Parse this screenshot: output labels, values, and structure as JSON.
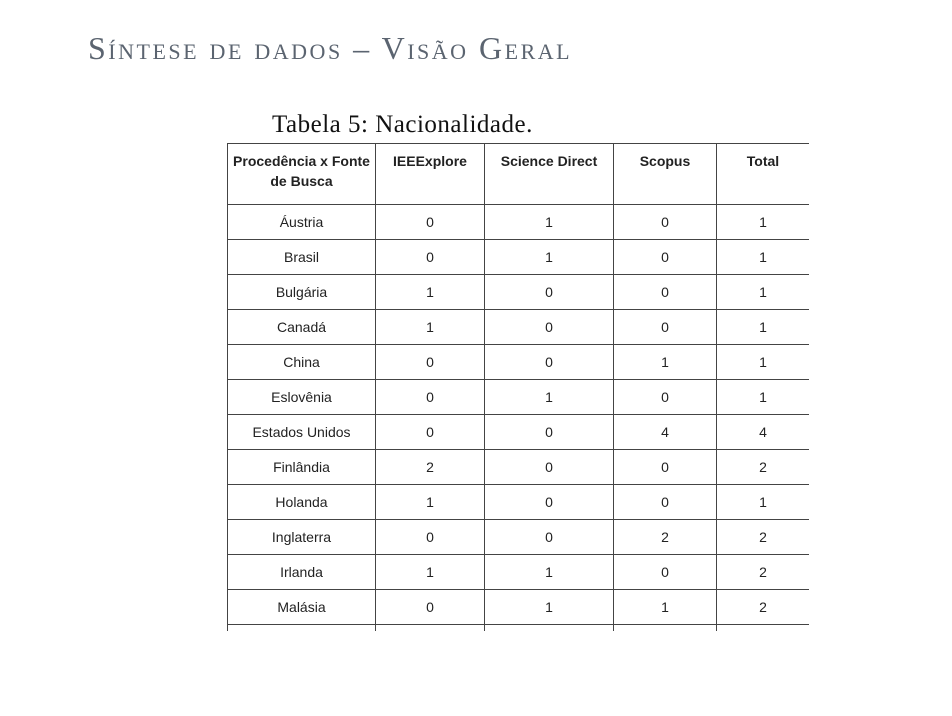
{
  "slide": {
    "title": "Síntese de dados – Visão Geral"
  },
  "table": {
    "caption": "Tabela 5: Nacionalidade.",
    "headers": {
      "origin": "Procedência x Fonte de Busca",
      "ieee": "IEEExplore",
      "science_direct": "Science Direct",
      "scopus": "Scopus",
      "total": "Total"
    },
    "rows": [
      {
        "country": "Áustria",
        "ieee": "0",
        "science_direct": "1",
        "scopus": "0",
        "total": "1"
      },
      {
        "country": "Brasil",
        "ieee": "0",
        "science_direct": "1",
        "scopus": "0",
        "total": "1"
      },
      {
        "country": "Bulgária",
        "ieee": "1",
        "science_direct": "0",
        "scopus": "0",
        "total": "1"
      },
      {
        "country": "Canadá",
        "ieee": "1",
        "science_direct": "0",
        "scopus": "0",
        "total": "1"
      },
      {
        "country": "China",
        "ieee": "0",
        "science_direct": "0",
        "scopus": "1",
        "total": "1"
      },
      {
        "country": "Eslovênia",
        "ieee": "0",
        "science_direct": "1",
        "scopus": "0",
        "total": "1"
      },
      {
        "country": "Estados Unidos",
        "ieee": "0",
        "science_direct": "0",
        "scopus": "4",
        "total": "4"
      },
      {
        "country": "Finlândia",
        "ieee": "2",
        "science_direct": "0",
        "scopus": "0",
        "total": "2"
      },
      {
        "country": "Holanda",
        "ieee": "1",
        "science_direct": "0",
        "scopus": "0",
        "total": "1"
      },
      {
        "country": "Inglaterra",
        "ieee": "0",
        "science_direct": "0",
        "scopus": "2",
        "total": "2"
      },
      {
        "country": "Irlanda",
        "ieee": "1",
        "science_direct": "1",
        "scopus": "0",
        "total": "2"
      },
      {
        "country": "Malásia",
        "ieee": "0",
        "science_direct": "1",
        "scopus": "1",
        "total": "2"
      }
    ]
  }
}
